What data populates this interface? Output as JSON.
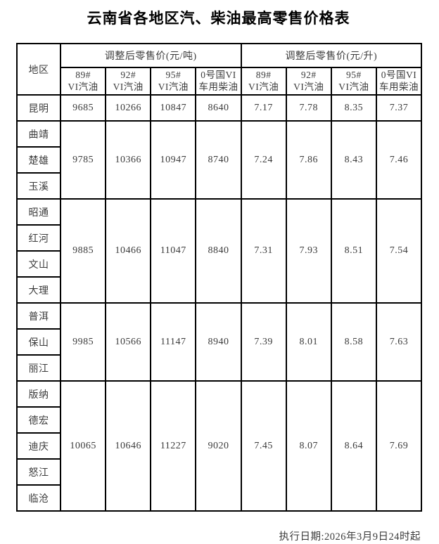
{
  "title": "云南省各地区汽、柴油最高零售价格表",
  "table": {
    "region_header": "地区",
    "group_headers": [
      "调整后零售价(元/吨)",
      "调整后零售价(元/升)"
    ],
    "column_headers": [
      {
        "line1": "89#",
        "line2": "VI汽油"
      },
      {
        "line1": "92#",
        "line2": "VI汽油"
      },
      {
        "line1": "95#",
        "line2": "VI汽油"
      },
      {
        "line1": "0号国VI",
        "line2": "车用柴油"
      },
      {
        "line1": "89#",
        "line2": "VI汽油"
      },
      {
        "line1": "92#",
        "line2": "VI汽油"
      },
      {
        "line1": "95#",
        "line2": "VI汽油"
      },
      {
        "line1": "0号国VI",
        "line2": "车用柴油"
      }
    ],
    "groups": [
      {
        "regions": [
          "昆明"
        ],
        "values": [
          "9685",
          "10266",
          "10847",
          "8640",
          "7.17",
          "7.78",
          "8.35",
          "7.37"
        ]
      },
      {
        "regions": [
          "曲靖",
          "楚雄",
          "玉溪"
        ],
        "values": [
          "9785",
          "10366",
          "10947",
          "8740",
          "7.24",
          "7.86",
          "8.43",
          "7.46"
        ]
      },
      {
        "regions": [
          "昭通",
          "红河",
          "文山",
          "大理"
        ],
        "values": [
          "9885",
          "10466",
          "11047",
          "8840",
          "7.31",
          "7.93",
          "8.51",
          "7.54"
        ]
      },
      {
        "regions": [
          "普洱",
          "保山",
          "丽江"
        ],
        "values": [
          "9985",
          "10566",
          "11147",
          "8940",
          "7.39",
          "8.01",
          "8.58",
          "7.63"
        ]
      },
      {
        "regions": [
          "版纳",
          "德宏",
          "迪庆",
          "怒江",
          "临沧"
        ],
        "values": [
          "10065",
          "10646",
          "11227",
          "9020",
          "7.45",
          "8.07",
          "8.64",
          "7.69"
        ]
      }
    ]
  },
  "footer": {
    "execution_date": "执行日期:2026年3月9日24时起"
  }
}
